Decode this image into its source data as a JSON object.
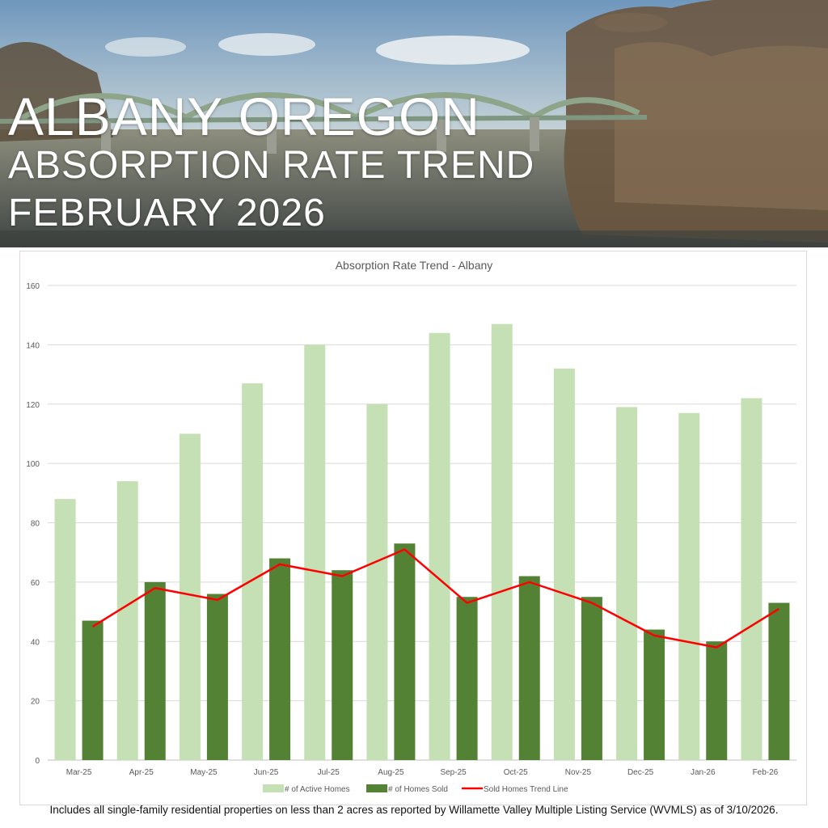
{
  "banner": {
    "line1": "ALBANY OREGON",
    "line2": "ABSORPTION RATE TREND",
    "line3": "FEBRUARY 2026"
  },
  "chart_data": {
    "type": "bar",
    "title": "Absorption Rate Trend - Albany",
    "categories": [
      "Mar-25",
      "Apr-25",
      "May-25",
      "Jun-25",
      "Jul-25",
      "Aug-25",
      "Sep-25",
      "Oct-25",
      "Nov-25",
      "Dec-25",
      "Jan-26",
      "Feb-26"
    ],
    "series": [
      {
        "name": "# of Active Homes",
        "type": "bar",
        "color": "#c5e0b4",
        "values": [
          88,
          94,
          110,
          127,
          140,
          120,
          144,
          147,
          132,
          119,
          117,
          122
        ]
      },
      {
        "name": "# of Homes Sold",
        "type": "bar",
        "color": "#548235",
        "values": [
          47,
          60,
          56,
          68,
          64,
          73,
          55,
          62,
          55,
          44,
          40,
          53
        ]
      },
      {
        "name": "Sold Homes Trend Line",
        "type": "line",
        "color": "#ff0000",
        "values": [
          45,
          58,
          54,
          66,
          62,
          71,
          53,
          60,
          53,
          42,
          38,
          51
        ]
      }
    ],
    "ylim": [
      0,
      160
    ],
    "yticks": [
      0,
      20,
      40,
      60,
      80,
      100,
      120,
      140,
      160
    ],
    "grid": true,
    "legend_position": "bottom"
  },
  "footnote": "Includes all single-family residential properties on less than 2 acres as reported by Willamette Valley Multiple Listing Service (WVMLS) as of 3/10/2026."
}
